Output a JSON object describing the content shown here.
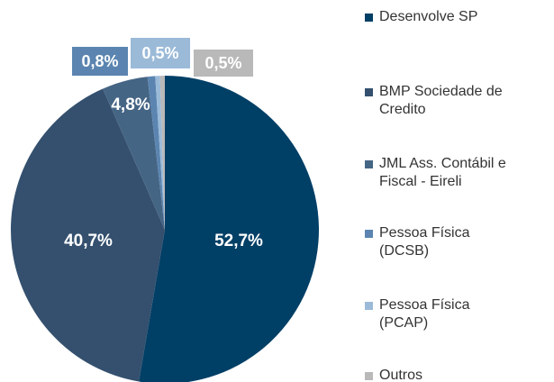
{
  "chart_data": {
    "type": "pie",
    "categories": [
      "Desenvolve SP",
      "BMP Sociedade de\nCredito",
      "JML Ass. Contábil e\nFiscal - Eireli",
      "Pessoa Física\n(DCSB)",
      "Pessoa Física\n(PCAP)",
      "Outros"
    ],
    "values": [
      52.7,
      40.7,
      4.8,
      0.8,
      0.5,
      0.5
    ],
    "value_labels": [
      "52,7%",
      "40,7%",
      "4,8%",
      "0,8%",
      "0,5%",
      "0,5%"
    ],
    "colors": [
      "#003f66",
      "#34506e",
      "#456585",
      "#5b85b0",
      "#9bbad8",
      "#b9b9b9"
    ],
    "legend": "right"
  }
}
